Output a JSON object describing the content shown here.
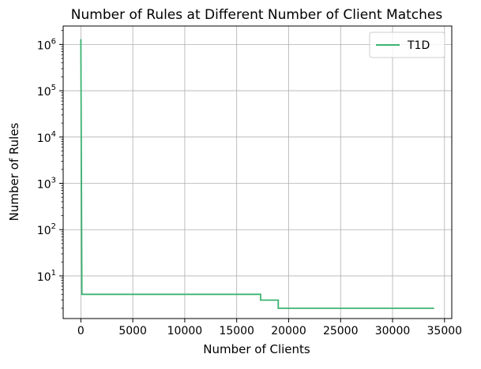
{
  "chart_data": {
    "type": "line",
    "title": "Number of Rules at Different Number of Client Matches",
    "xlabel": "Number of Clients",
    "ylabel": "Number of Rules",
    "xscale": "linear",
    "yscale": "log",
    "xlim": [
      -1700,
      35700
    ],
    "ylim": [
      1.2,
      2500000
    ],
    "xticks": [
      0,
      5000,
      10000,
      15000,
      20000,
      25000,
      30000,
      35000
    ],
    "xtick_labels": [
      "0",
      "5000",
      "10000",
      "15000",
      "20000",
      "25000",
      "30000",
      "35000"
    ],
    "yticks": [
      10,
      100,
      1000,
      10000,
      100000,
      1000000
    ],
    "ytick_labels": [
      {
        "base": "10",
        "exp": "1"
      },
      {
        "base": "10",
        "exp": "2"
      },
      {
        "base": "10",
        "exp": "3"
      },
      {
        "base": "10",
        "exp": "4"
      },
      {
        "base": "10",
        "exp": "5"
      },
      {
        "base": "10",
        "exp": "6"
      }
    ],
    "grid": true,
    "legend_position": "top-right",
    "series": [
      {
        "name": "T1D",
        "color": "#3cb371",
        "points": [
          [
            0,
            1300000
          ],
          [
            100,
            4
          ],
          [
            17300,
            4
          ],
          [
            17300,
            3
          ],
          [
            19000,
            3
          ],
          [
            19000,
            2
          ],
          [
            34000,
            2
          ]
        ]
      }
    ]
  }
}
